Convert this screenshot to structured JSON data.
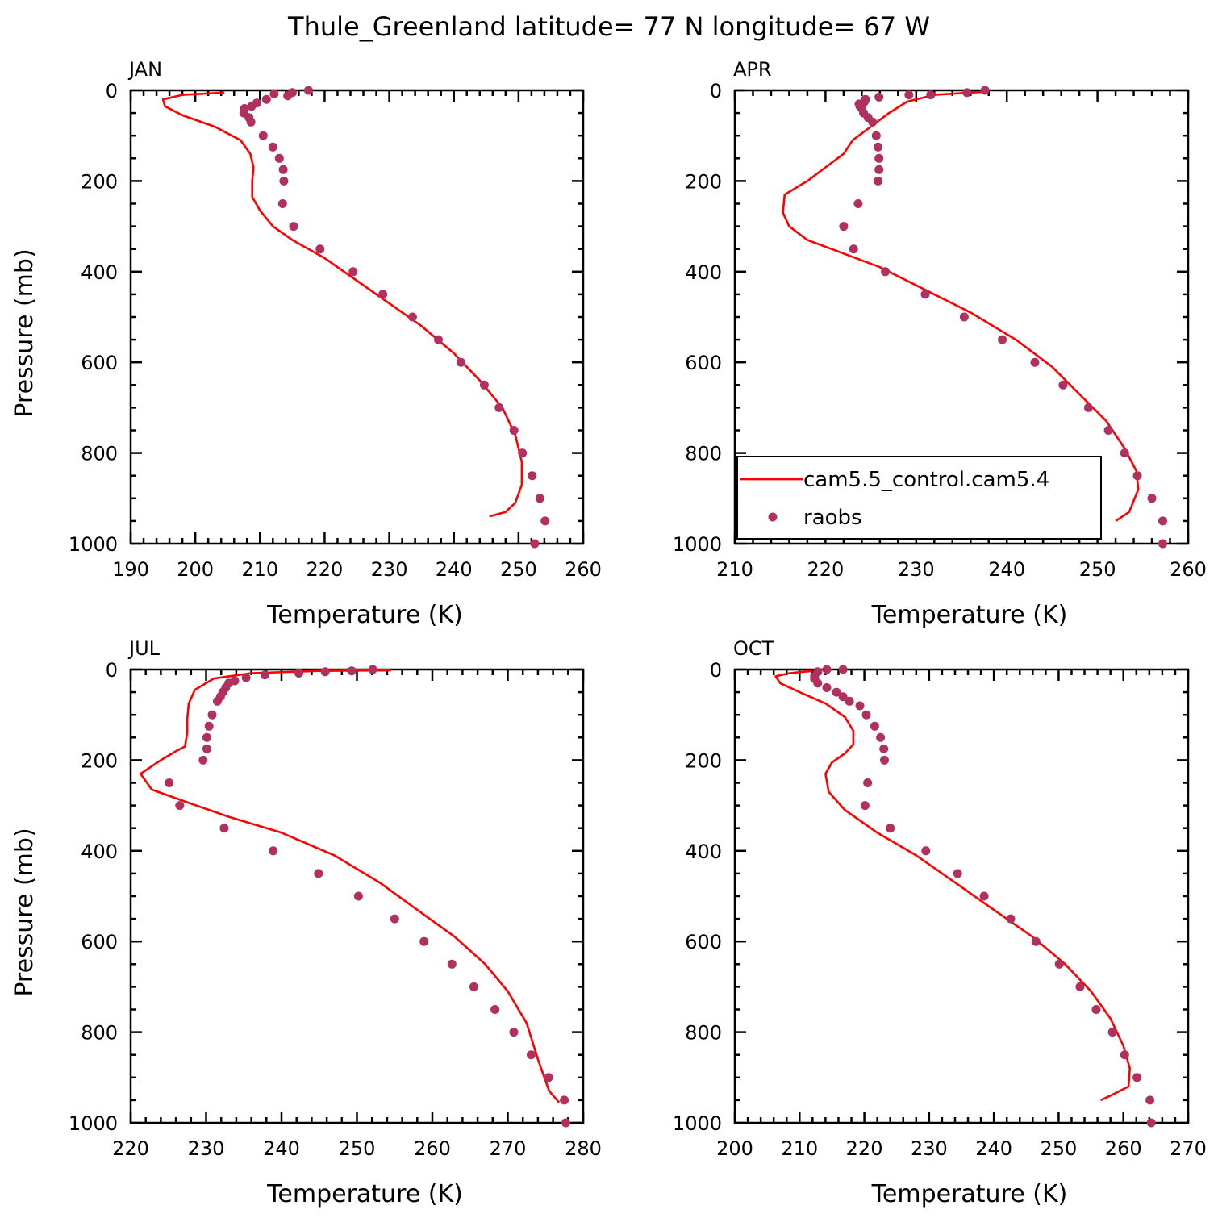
{
  "title": "Thule_Greenland  latitude= 77 N longitude= 67 W",
  "colors": {
    "model": "#ff0000",
    "obs": "#b03060",
    "axis": "#000000"
  },
  "legend": {
    "entries": [
      {
        "label": "cam5.5_control.cam5.4",
        "symbol": "line"
      },
      {
        "label": "raobs",
        "symbol": "dot"
      }
    ]
  },
  "chart_data": [
    {
      "type": "line",
      "panel": "JAN",
      "xlabel": "Temperature (K)",
      "ylabel": "Pressure (mb)",
      "xlim": [
        190,
        260
      ],
      "ylim": [
        1000,
        0
      ],
      "y_inverted": true,
      "xticks": [
        190,
        200,
        210,
        220,
        230,
        240,
        250,
        260
      ],
      "yticks": [
        0,
        200,
        400,
        600,
        800,
        1000
      ],
      "series": [
        {
          "name": "cam5.5_control.cam5.4",
          "kind": "line",
          "x": [
            204.5,
            198,
            195,
            195.3,
            198,
            203,
            207,
            208.5,
            209,
            208.8,
            208.8,
            210,
            212,
            215,
            220,
            225,
            230,
            235,
            240,
            244,
            247.5,
            249.5,
            250.5,
            250.5,
            249.5,
            248,
            245.5
          ],
          "y": [
            5,
            10,
            20,
            35,
            55,
            80,
            110,
            140,
            170,
            200,
            235,
            265,
            300,
            330,
            370,
            420,
            470,
            520,
            580,
            640,
            700,
            760,
            820,
            870,
            910,
            930,
            940
          ]
        },
        {
          "name": "raobs",
          "kind": "scatter",
          "x": [
            217.5,
            215,
            212.2,
            214.3,
            211,
            209.5,
            208.7,
            207.6,
            207.5,
            208.3,
            208.6,
            210.5,
            212,
            213,
            213.6,
            213.7,
            213.5,
            215.2,
            219.3,
            224.4,
            229,
            233.6,
            237.6,
            241.1,
            244.7,
            247,
            249.3,
            250.6,
            252.1,
            253.3,
            254.1,
            252.5
          ],
          "y": [
            0,
            5,
            8,
            12,
            20,
            28,
            35,
            40,
            50,
            60,
            70,
            100,
            125,
            150,
            175,
            200,
            250,
            300,
            350,
            400,
            450,
            500,
            550,
            600,
            650,
            700,
            750,
            800,
            850,
            900,
            950,
            1000
          ]
        }
      ]
    },
    {
      "type": "line",
      "panel": "APR",
      "xlabel": "Temperature (K)",
      "ylabel": "",
      "xlim": [
        210,
        260
      ],
      "ylim": [
        1000,
        0
      ],
      "y_inverted": true,
      "xticks": [
        210,
        220,
        230,
        240,
        250,
        260
      ],
      "yticks": [
        0,
        200,
        400,
        600,
        800,
        1000
      ],
      "series": [
        {
          "name": "cam5.5_control.cam5.4",
          "kind": "line",
          "x": [
            238,
            236,
            232,
            229,
            227,
            225,
            223,
            222,
            220,
            218,
            215.5,
            215.3,
            216,
            218,
            222,
            226,
            231,
            236,
            241,
            245,
            248,
            251,
            253,
            254.3,
            254.5,
            253.5,
            252
          ],
          "y": [
            3,
            5,
            10,
            25,
            50,
            80,
            110,
            140,
            170,
            200,
            230,
            270,
            300,
            330,
            360,
            390,
            440,
            490,
            550,
            610,
            670,
            730,
            790,
            840,
            880,
            930,
            950
          ]
        },
        {
          "name": "raobs",
          "kind": "scatter",
          "x": [
            237.6,
            235.6,
            231.6,
            229.2,
            225.9,
            224.4,
            224.3,
            223.7,
            223.8,
            224.0,
            224.2,
            224.7,
            225.2,
            225.6,
            225.8,
            225.9,
            225.9,
            225.8,
            223.6,
            222.0,
            223.1,
            226.6,
            231.0,
            235.3,
            239.5,
            243.1,
            246.2,
            249.0,
            251.2,
            253.0,
            254.4,
            256.0,
            257.2,
            257.2
          ],
          "y": [
            0,
            5,
            10,
            10,
            15,
            20,
            25,
            30,
            35,
            40,
            50,
            60,
            70,
            100,
            125,
            150,
            175,
            200,
            250,
            300,
            350,
            400,
            450,
            500,
            550,
            600,
            650,
            700,
            750,
            800,
            850,
            900,
            950,
            1000
          ]
        }
      ]
    },
    {
      "type": "line",
      "panel": "JUL",
      "xlabel": "Temperature (K)",
      "ylabel": "Pressure (mb)",
      "xlim": [
        220,
        280
      ],
      "ylim": [
        1000,
        0
      ],
      "y_inverted": true,
      "xticks": [
        220,
        230,
        240,
        250,
        260,
        270,
        280
      ],
      "yticks": [
        0,
        200,
        400,
        600,
        800,
        1000
      ],
      "series": [
        {
          "name": "cam5.5_control.cam5.4",
          "kind": "line",
          "x": [
            254.5,
            245,
            236,
            231,
            228.5,
            227.7,
            227.5,
            227.5,
            227.2,
            226,
            224,
            221.3,
            222.8,
            227,
            233,
            240,
            247,
            253,
            258,
            263,
            267,
            270,
            272.5,
            274,
            275.5,
            276.8
          ],
          "y": [
            2,
            3,
            8,
            20,
            45,
            75,
            110,
            140,
            170,
            180,
            200,
            230,
            265,
            290,
            325,
            360,
            410,
            470,
            530,
            590,
            650,
            710,
            780,
            860,
            930,
            955
          ]
        },
        {
          "name": "raobs",
          "kind": "scatter",
          "x": [
            252.1,
            249.3,
            245.8,
            242.3,
            237.8,
            235.3,
            233.8,
            233.0,
            232.6,
            232.2,
            231.9,
            231.5,
            230.8,
            230.4,
            230.1,
            230.1,
            229.6,
            225.1,
            226.5,
            232.4,
            238.9,
            244.9,
            250.2,
            255.0,
            258.9,
            262.6,
            265.5,
            268.3,
            270.8,
            273.1,
            275.4,
            277.5,
            277.7
          ],
          "y": [
            0,
            3,
            5,
            8,
            12,
            18,
            25,
            30,
            40,
            50,
            60,
            70,
            100,
            125,
            150,
            175,
            200,
            250,
            300,
            350,
            400,
            450,
            500,
            550,
            600,
            650,
            700,
            750,
            800,
            850,
            900,
            950,
            1000
          ]
        }
      ]
    },
    {
      "type": "line",
      "panel": "OCT",
      "xlabel": "Temperature (K)",
      "ylabel": "",
      "xlim": [
        200,
        270
      ],
      "ylim": [
        1000,
        0
      ],
      "y_inverted": true,
      "xticks": [
        200,
        210,
        220,
        230,
        240,
        250,
        260,
        270
      ],
      "yticks": [
        0,
        200,
        400,
        600,
        800,
        1000
      ],
      "series": [
        {
          "name": "cam5.5_control.cam5.4",
          "kind": "line",
          "x": [
            212,
            208.5,
            206.3,
            207,
            210,
            214,
            217,
            218.3,
            218.3,
            217,
            215,
            214,
            214.5,
            217,
            222,
            228,
            234,
            240,
            246,
            251,
            255,
            258,
            260,
            261,
            260.8,
            258,
            256.5
          ],
          "y": [
            3,
            8,
            15,
            30,
            50,
            75,
            105,
            135,
            165,
            185,
            205,
            230,
            270,
            310,
            360,
            410,
            470,
            530,
            590,
            650,
            710,
            770,
            830,
            880,
            920,
            940,
            950
          ]
        },
        {
          "name": "raobs",
          "kind": "scatter",
          "x": [
            216.7,
            214.2,
            212.8,
            212.3,
            212.3,
            212.8,
            214.2,
            215.7,
            216.7,
            217.7,
            219.3,
            220.3,
            221.6,
            222.5,
            223.0,
            223.1,
            220.5,
            220.1,
            224.0,
            229.5,
            234.4,
            238.5,
            242.6,
            246.5,
            250.1,
            253.3,
            255.8,
            258.3,
            260.2,
            262.1,
            264.1,
            264.3
          ],
          "y": [
            0,
            0,
            5,
            15,
            20,
            30,
            40,
            50,
            60,
            70,
            80,
            100,
            125,
            150,
            175,
            200,
            250,
            300,
            350,
            400,
            450,
            500,
            550,
            600,
            650,
            700,
            750,
            800,
            850,
            900,
            950,
            1000
          ]
        }
      ]
    }
  ]
}
